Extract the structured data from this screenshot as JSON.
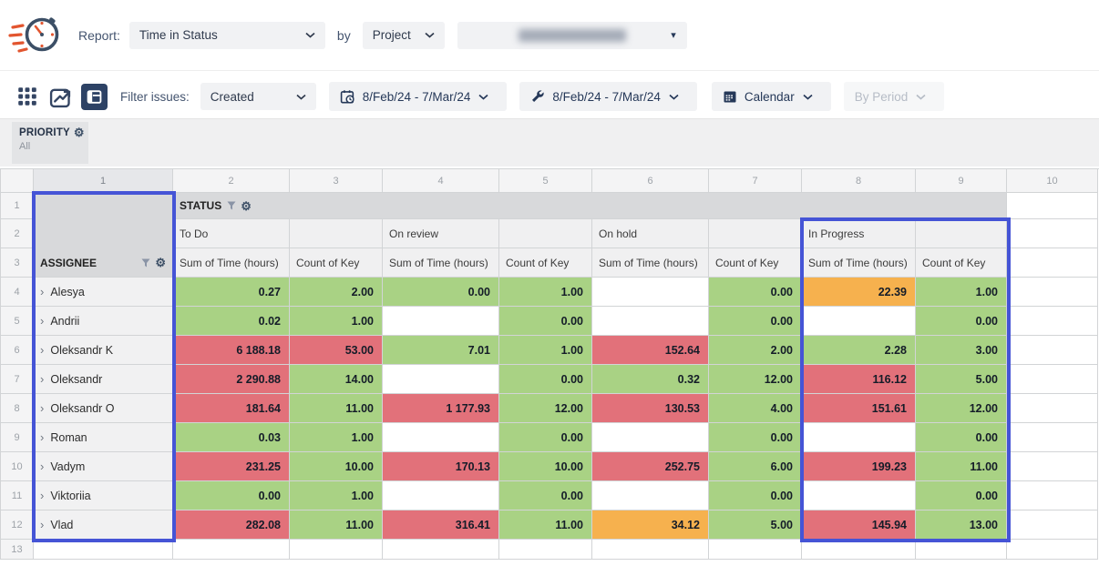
{
  "header": {
    "report_label": "Report:",
    "report_type_value": "Time in Status",
    "by_label": "by",
    "scope_value": "Project",
    "project_value": ""
  },
  "toolbar": {
    "views": [
      {
        "name": "table-view"
      },
      {
        "name": "chart-view"
      },
      {
        "name": "pivot-view",
        "active": true
      }
    ],
    "filter_label": "Filter issues:",
    "filter_value": "Created",
    "date_range_created": "8/Feb/24 - 7/Mar/24",
    "date_range_worklog": "8/Feb/24 - 7/Mar/24",
    "calendar_label": "Calendar",
    "by_period_label": "By Period"
  },
  "priority": {
    "label": "PRIORITY",
    "value": "All"
  },
  "grid": {
    "column_numbers": [
      "1",
      "2",
      "3",
      "4",
      "5",
      "6",
      "7",
      "8",
      "9",
      "10"
    ],
    "row_numbers": [
      "1",
      "2",
      "3",
      "4",
      "5",
      "6",
      "7",
      "8",
      "9",
      "10",
      "11",
      "12",
      "13"
    ],
    "status_label": "STATUS",
    "assignee_label": "ASSIGNEE",
    "groups": [
      "To Do",
      "On review",
      "On hold",
      "In Progress"
    ],
    "measures": [
      "Sum of Time (hours)",
      "Count of Key"
    ],
    "rows": [
      {
        "name": "Alesya",
        "values": [
          [
            "0.27",
            "green"
          ],
          [
            "2.00",
            "green"
          ],
          [
            "0.00",
            "green"
          ],
          [
            "1.00",
            "green"
          ],
          [
            "",
            "white"
          ],
          [
            "0.00",
            "green"
          ],
          [
            "22.39",
            "orange"
          ],
          [
            "1.00",
            "green"
          ]
        ]
      },
      {
        "name": "Andrii",
        "values": [
          [
            "0.02",
            "green"
          ],
          [
            "1.00",
            "green"
          ],
          [
            "",
            "white"
          ],
          [
            "0.00",
            "green"
          ],
          [
            "",
            "white"
          ],
          [
            "0.00",
            "green"
          ],
          [
            "",
            "white"
          ],
          [
            "0.00",
            "green"
          ]
        ]
      },
      {
        "name": "Oleksandr K",
        "values": [
          [
            "6 188.18",
            "red"
          ],
          [
            "53.00",
            "red"
          ],
          [
            "7.01",
            "green"
          ],
          [
            "1.00",
            "green"
          ],
          [
            "152.64",
            "red"
          ],
          [
            "2.00",
            "green"
          ],
          [
            "2.28",
            "green"
          ],
          [
            "3.00",
            "green"
          ]
        ]
      },
      {
        "name": "Oleksandr",
        "values": [
          [
            "2 290.88",
            "red"
          ],
          [
            "14.00",
            "green"
          ],
          [
            "",
            "white"
          ],
          [
            "0.00",
            "green"
          ],
          [
            "0.32",
            "green"
          ],
          [
            "12.00",
            "green"
          ],
          [
            "116.12",
            "red"
          ],
          [
            "5.00",
            "green"
          ]
        ]
      },
      {
        "name": "Oleksandr O",
        "values": [
          [
            "181.64",
            "red"
          ],
          [
            "11.00",
            "green"
          ],
          [
            "1 177.93",
            "red"
          ],
          [
            "12.00",
            "green"
          ],
          [
            "130.53",
            "red"
          ],
          [
            "4.00",
            "green"
          ],
          [
            "151.61",
            "red"
          ],
          [
            "12.00",
            "green"
          ]
        ]
      },
      {
        "name": "Roman",
        "values": [
          [
            "0.03",
            "green"
          ],
          [
            "1.00",
            "green"
          ],
          [
            "",
            "white"
          ],
          [
            "0.00",
            "green"
          ],
          [
            "",
            "white"
          ],
          [
            "0.00",
            "green"
          ],
          [
            "",
            "white"
          ],
          [
            "0.00",
            "green"
          ]
        ]
      },
      {
        "name": "Vadym",
        "values": [
          [
            "231.25",
            "red"
          ],
          [
            "10.00",
            "green"
          ],
          [
            "170.13",
            "red"
          ],
          [
            "10.00",
            "green"
          ],
          [
            "252.75",
            "red"
          ],
          [
            "6.00",
            "green"
          ],
          [
            "199.23",
            "red"
          ],
          [
            "11.00",
            "green"
          ]
        ]
      },
      {
        "name": "Viktoriia",
        "values": [
          [
            "0.00",
            "green"
          ],
          [
            "1.00",
            "green"
          ],
          [
            "",
            "white"
          ],
          [
            "0.00",
            "green"
          ],
          [
            "",
            "white"
          ],
          [
            "0.00",
            "green"
          ],
          [
            "",
            "white"
          ],
          [
            "0.00",
            "green"
          ]
        ]
      },
      {
        "name": "Vlad",
        "values": [
          [
            "282.08",
            "red"
          ],
          [
            "11.00",
            "green"
          ],
          [
            "316.41",
            "red"
          ],
          [
            "11.00",
            "green"
          ],
          [
            "34.12",
            "orange"
          ],
          [
            "5.00",
            "green"
          ],
          [
            "145.94",
            "red"
          ],
          [
            "13.00",
            "green"
          ]
        ]
      }
    ]
  },
  "colors": {
    "green": "#a9d284",
    "red": "#e2717a",
    "orange": "#f6b14e",
    "white": "#ffffff",
    "selection_blue": "#4554d6",
    "accent_navy": "#344563"
  },
  "icons": {
    "gear": "⚙",
    "expand_chevron": "›",
    "dropdown_caret": "▾"
  }
}
